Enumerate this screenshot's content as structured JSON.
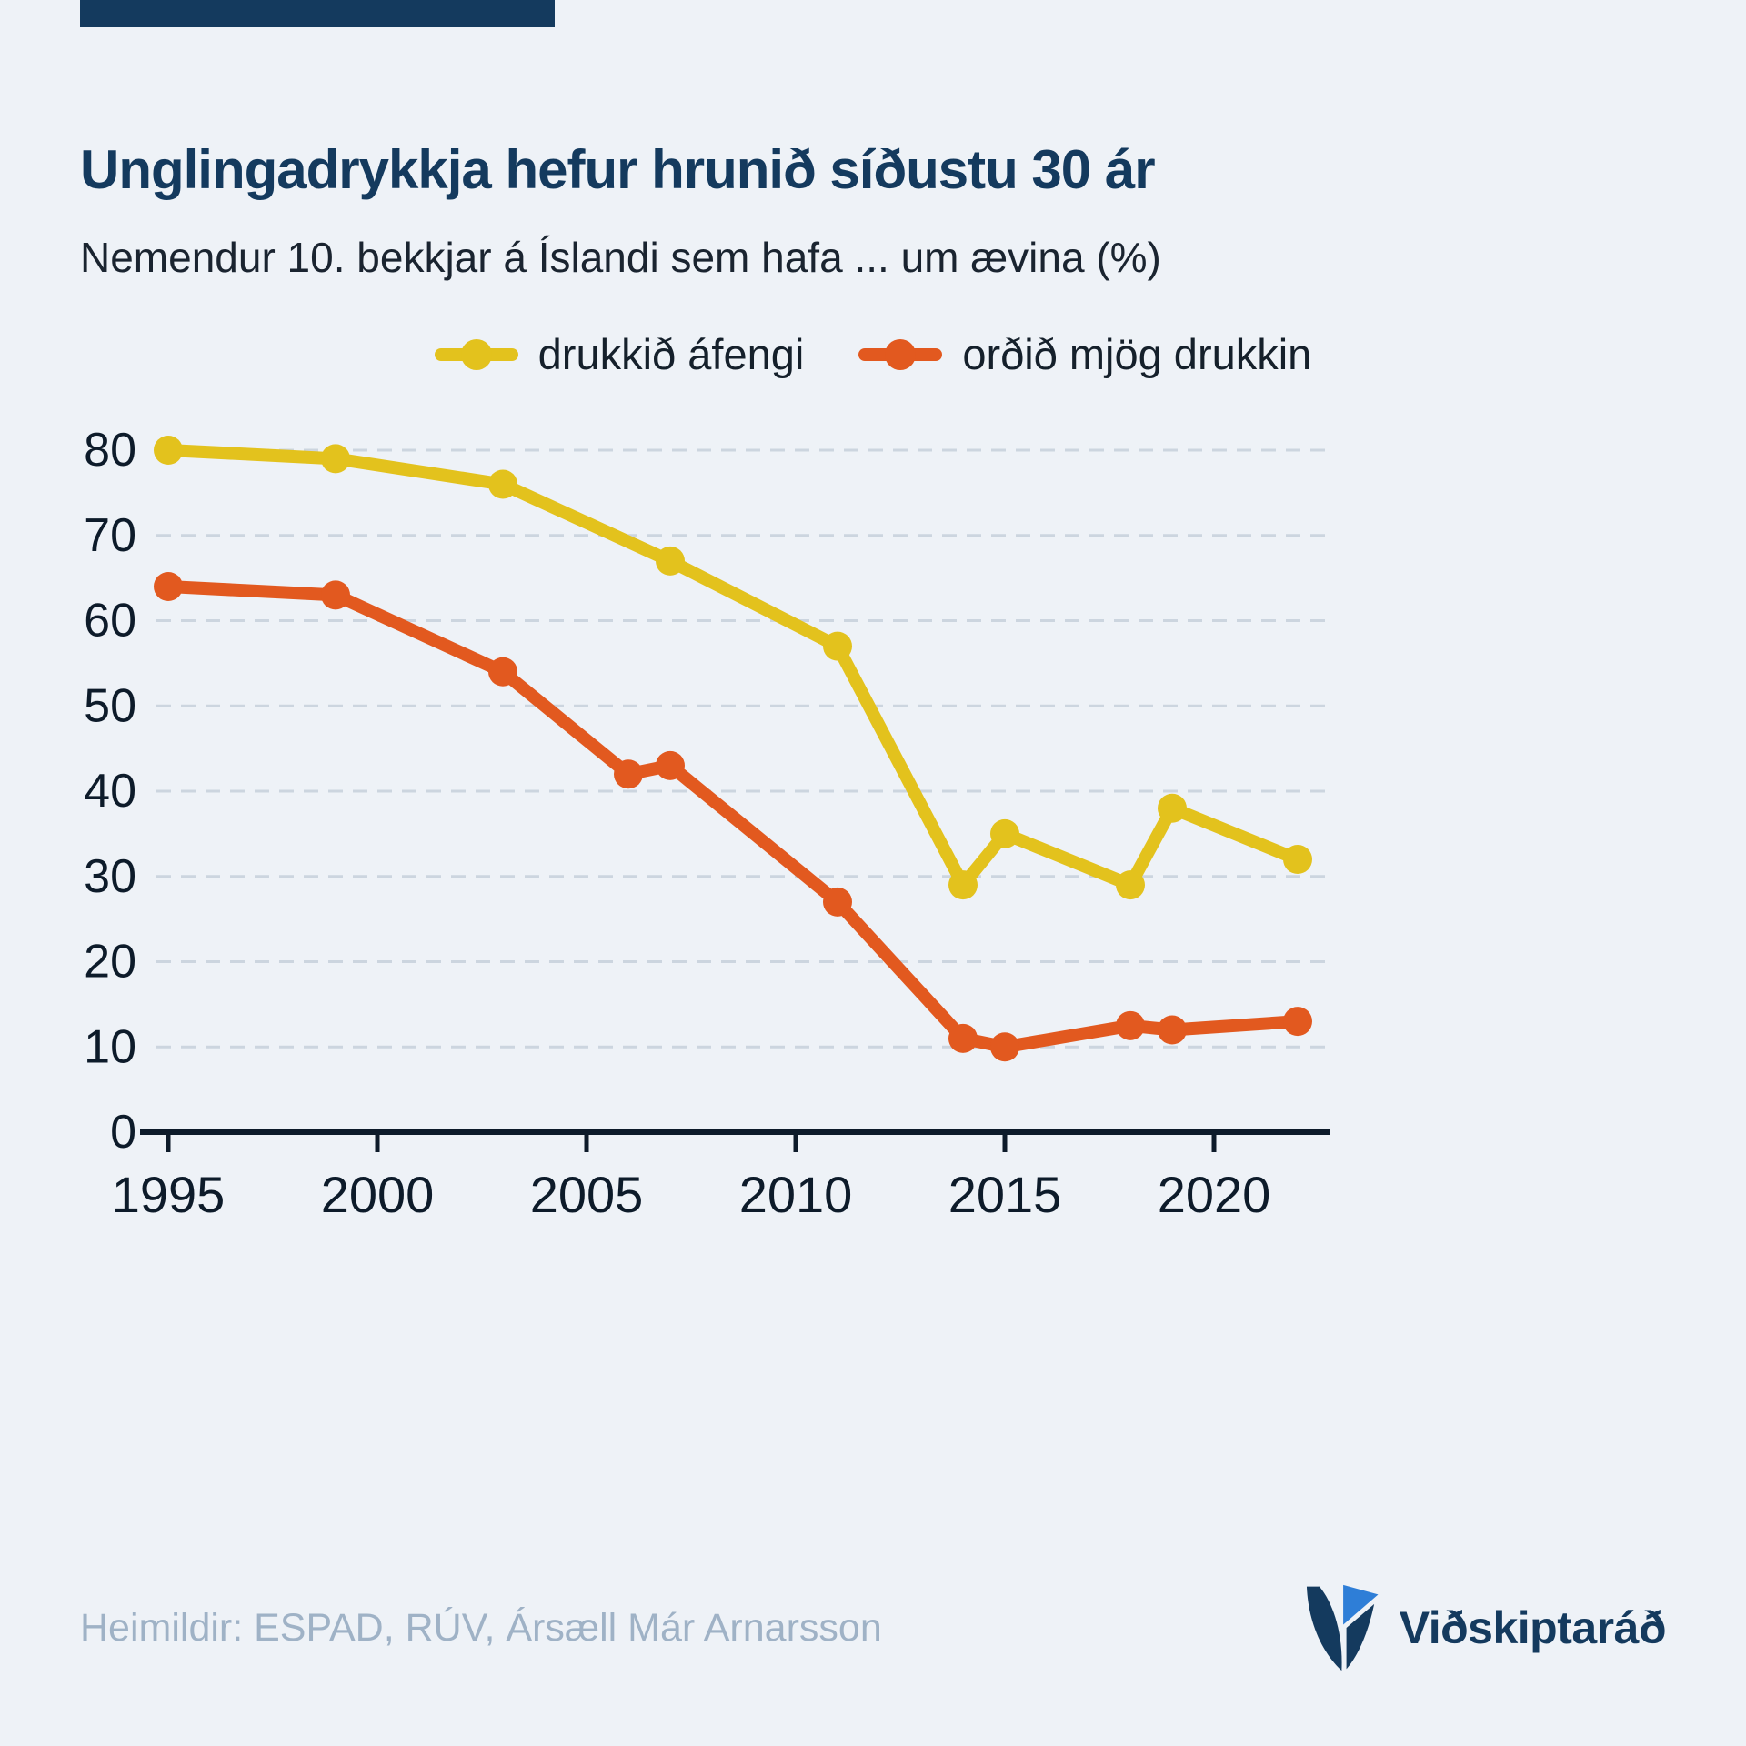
{
  "header": {
    "title": "Unglingadrykkja hefur hrunið síðustu 30 ár",
    "subtitle": "Nemendur 10. bekkjar á Íslandi sem hafa ... um ævina (%)"
  },
  "footer": {
    "source": "Heimildir: ESPAD, RÚV, Ársæll Már Arnarsson",
    "brand": "Viðskiptaráð"
  },
  "colors": {
    "background": "#eef2f7",
    "navy": "#143a5e",
    "grid": "#ccd5df",
    "axis": "#0d1b2a",
    "muted_text": "#9fb2c6",
    "logo_blue": "#2e7ed7"
  },
  "chart_data": {
    "type": "line",
    "title": "Unglingadrykkja hefur hrunið síðustu 30 ár",
    "subtitle": "Nemendur 10. bekkjar á Íslandi sem hafa ... um ævina (%)",
    "xlabel": "",
    "ylabel": "",
    "xlim": [
      1994.5,
      2023
    ],
    "ylim": [
      0,
      80
    ],
    "xticks": [
      1995,
      2000,
      2005,
      2010,
      2015,
      2020
    ],
    "yticks": [
      0,
      10,
      20,
      30,
      40,
      50,
      60,
      70,
      80
    ],
    "grid": "horizontal-dashed",
    "legend_position": "top-center",
    "series": [
      {
        "name": "drukkið áfengi",
        "color": "#e3c21d",
        "x": [
          1995,
          1999,
          2003,
          2007,
          2011,
          2014,
          2015,
          2018,
          2019,
          2022
        ],
        "values": [
          80,
          79,
          76,
          67,
          57,
          29,
          35,
          29,
          38,
          32
        ]
      },
      {
        "name": "orðið mjög drukkin",
        "color": "#e2591f",
        "x": [
          1995,
          1999,
          2003,
          2006,
          2007,
          2011,
          2014,
          2015,
          2018,
          2019,
          2022
        ],
        "values": [
          64,
          63,
          54,
          42,
          43,
          27,
          11,
          10,
          12.5,
          12,
          13
        ]
      }
    ]
  }
}
